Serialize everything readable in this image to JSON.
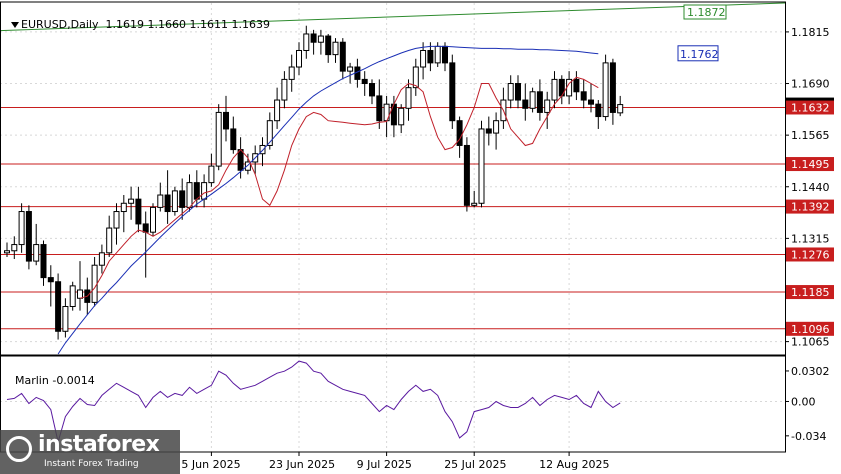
{
  "window": {
    "symbol": "EURUSD,Daily",
    "ohlc": [
      "1.1619",
      "1.1660",
      "1.1611",
      "1.1639"
    ]
  },
  "indicator": {
    "name": "Marlin",
    "value": "-0.0014",
    "ticks": [
      "0.0302",
      "0.00",
      "-0.034"
    ]
  },
  "watermark": {
    "brand": "instaforex",
    "tagline": "Instant Forex Trading"
  },
  "chart_data": {
    "type": "candlestick",
    "price_ticks": [
      "1.1815",
      "1.1690",
      "1.1565",
      "1.1440",
      "1.1315",
      "1.1065"
    ],
    "ylim": [
      1.1035,
      1.1885
    ],
    "x_labels": [
      {
        "label": "5 Jun 2025",
        "bar": 28
      },
      {
        "label": "23 Jun 2025",
        "bar": 40
      },
      {
        "label": "9 Jul 2025",
        "bar": 52
      },
      {
        "label": "25 Jul 2025",
        "bar": 64
      },
      {
        "label": "12 Aug 2025",
        "bar": 77
      }
    ],
    "level_lines": [
      {
        "value": 1.1632,
        "label": "1.1632"
      },
      {
        "value": 1.1495,
        "label": "1.1495"
      },
      {
        "value": 1.1392,
        "label": "1.1392"
      },
      {
        "value": 1.1276,
        "label": "1.1276"
      },
      {
        "value": 1.1185,
        "label": "1.1185"
      },
      {
        "value": 1.1096,
        "label": "1.1096"
      }
    ],
    "trendline": {
      "color": "#2e8b2e",
      "start": 1.1818,
      "end": 1.1885,
      "label": "1.1872"
    },
    "ma_blue": {
      "color": "#1a2fb5",
      "label": "1.1762",
      "label_value": 1.1762,
      "values": [
        null,
        null,
        null,
        null,
        null,
        null,
        null,
        1.1035,
        1.1062,
        1.1085,
        1.1108,
        1.113,
        1.1152,
        1.117,
        1.119,
        1.1208,
        1.1228,
        1.1248,
        1.1265,
        1.1282,
        1.13,
        1.1318,
        1.1335,
        1.1352,
        1.1368,
        1.1383,
        1.1398,
        1.141,
        1.1422,
        1.1435,
        1.1448,
        1.1462,
        1.1477,
        1.1492,
        1.151,
        1.1528,
        1.1548,
        1.1568,
        1.1588,
        1.1608,
        1.1628,
        1.1645,
        1.166,
        1.1672,
        1.1682,
        1.1692,
        1.1702,
        1.171,
        1.1718,
        1.1726,
        1.1735,
        1.1743,
        1.175,
        1.1757,
        1.1764,
        1.177,
        1.1775,
        1.1778,
        1.178,
        1.178,
        1.178,
        1.1779,
        1.1778,
        1.1777,
        1.1776,
        1.1775,
        1.1775,
        1.1775,
        1.1774,
        1.1774,
        1.1773,
        1.1773,
        1.1773,
        1.1772,
        1.1772,
        1.1771,
        1.177,
        1.1769,
        1.1768,
        1.1766,
        1.1764,
        1.1762
      ]
    },
    "ma_red": {
      "color": "#c0202a",
      "values": [
        null,
        null,
        null,
        null,
        null,
        null,
        null,
        null,
        null,
        null,
        1.117,
        1.1175,
        1.1195,
        1.1225,
        1.126,
        1.128,
        1.13,
        1.132,
        1.1335,
        1.133,
        1.132,
        1.133,
        1.1345,
        1.136,
        1.1375,
        1.139,
        1.141,
        1.1425,
        1.143,
        1.1445,
        1.148,
        1.151,
        1.153,
        1.151,
        1.147,
        1.141,
        1.1395,
        1.143,
        1.148,
        1.154,
        1.158,
        1.161,
        1.162,
        1.1615,
        1.16,
        1.1598,
        1.1596,
        1.1594,
        1.1592,
        1.159,
        1.1592,
        1.1596,
        1.1598,
        1.164,
        1.1675,
        1.169,
        1.1685,
        1.167,
        1.161,
        1.156,
        1.153,
        1.1535,
        1.1555,
        1.159,
        1.1632,
        1.169,
        1.169,
        1.1655,
        1.1625,
        1.158,
        1.156,
        1.154,
        1.1545,
        1.158,
        1.161,
        1.164,
        1.166,
        1.169,
        1.1705,
        1.17,
        1.169,
        1.168
      ]
    },
    "candles": [
      [
        1.128,
        1.1305,
        1.127,
        1.1285
      ],
      [
        1.1285,
        1.132,
        1.1265,
        1.13
      ],
      [
        1.13,
        1.14,
        1.128,
        1.138
      ],
      [
        1.138,
        1.1395,
        1.124,
        1.126
      ],
      [
        1.126,
        1.135,
        1.125,
        1.13
      ],
      [
        1.13,
        1.131,
        1.12,
        1.122
      ],
      [
        1.122,
        1.125,
        1.115,
        1.121
      ],
      [
        1.121,
        1.123,
        1.107,
        1.109
      ],
      [
        1.109,
        1.117,
        1.1075,
        1.115
      ],
      [
        1.115,
        1.121,
        1.114,
        1.12
      ],
      [
        1.117,
        1.126,
        1.114,
        1.119
      ],
      [
        1.119,
        1.122,
        1.113,
        1.116
      ],
      [
        1.116,
        1.127,
        1.115,
        1.125
      ],
      [
        1.125,
        1.13,
        1.123,
        1.128
      ],
      [
        1.128,
        1.137,
        1.127,
        1.134
      ],
      [
        1.134,
        1.14,
        1.13,
        1.138
      ],
      [
        1.138,
        1.142,
        1.133,
        1.14
      ],
      [
        1.14,
        1.144,
        1.136,
        1.141
      ],
      [
        1.141,
        1.144,
        1.133,
        1.135
      ],
      [
        1.135,
        1.138,
        1.122,
        1.133
      ],
      [
        1.133,
        1.14,
        1.132,
        1.139
      ],
      [
        1.139,
        1.145,
        1.138,
        1.142
      ],
      [
        1.142,
        1.148,
        1.135,
        1.138
      ],
      [
        1.138,
        1.144,
        1.137,
        1.143
      ],
      [
        1.143,
        1.146,
        1.136,
        1.139
      ],
      [
        1.139,
        1.147,
        1.138,
        1.145
      ],
      [
        1.145,
        1.148,
        1.139,
        1.141
      ],
      [
        1.141,
        1.147,
        1.139,
        1.145
      ],
      [
        1.145,
        1.152,
        1.144,
        1.149
      ],
      [
        1.149,
        1.164,
        1.148,
        1.162
      ],
      [
        1.162,
        1.166,
        1.155,
        1.158
      ],
      [
        1.158,
        1.161,
        1.152,
        1.153
      ],
      [
        1.153,
        1.156,
        1.146,
        1.148
      ],
      [
        1.148,
        1.152,
        1.147,
        1.15
      ],
      [
        1.15,
        1.154,
        1.147,
        1.152
      ],
      [
        1.152,
        1.156,
        1.149,
        1.154
      ],
      [
        1.154,
        1.162,
        1.153,
        1.16
      ],
      [
        1.16,
        1.168,
        1.158,
        1.165
      ],
      [
        1.165,
        1.172,
        1.163,
        1.17
      ],
      [
        1.17,
        1.176,
        1.167,
        1.173
      ],
      [
        1.173,
        1.179,
        1.171,
        1.177
      ],
      [
        1.177,
        1.183,
        1.175,
        1.181
      ],
      [
        1.181,
        1.182,
        1.176,
        1.179
      ],
      [
        1.179,
        1.182,
        1.176,
        1.1805
      ],
      [
        1.1805,
        1.181,
        1.174,
        1.176
      ],
      [
        1.176,
        1.18,
        1.174,
        1.179
      ],
      [
        1.179,
        1.18,
        1.17,
        1.172
      ],
      [
        1.172,
        1.174,
        1.169,
        1.173
      ],
      [
        1.173,
        1.175,
        1.168,
        1.17
      ],
      [
        1.17,
        1.172,
        1.166,
        1.169
      ],
      [
        1.169,
        1.17,
        1.164,
        1.166
      ],
      [
        1.166,
        1.17,
        1.158,
        1.16
      ],
      [
        1.16,
        1.166,
        1.156,
        1.164
      ],
      [
        1.164,
        1.166,
        1.156,
        1.159
      ],
      [
        1.159,
        1.164,
        1.157,
        1.163
      ],
      [
        1.163,
        1.17,
        1.16,
        1.168
      ],
      [
        1.168,
        1.175,
        1.166,
        1.173
      ],
      [
        1.173,
        1.179,
        1.17,
        1.177
      ],
      [
        1.177,
        1.179,
        1.172,
        1.174
      ],
      [
        1.174,
        1.179,
        1.173,
        1.178
      ],
      [
        1.178,
        1.179,
        1.172,
        1.174
      ],
      [
        1.174,
        1.176,
        1.158,
        1.16
      ],
      [
        1.16,
        1.161,
        1.151,
        1.154
      ],
      [
        1.154,
        1.156,
        1.138,
        1.1395
      ],
      [
        1.1395,
        1.143,
        1.139,
        1.14
      ],
      [
        1.14,
        1.16,
        1.139,
        1.158
      ],
      [
        1.158,
        1.161,
        1.154,
        1.157
      ],
      [
        1.157,
        1.162,
        1.153,
        1.16
      ],
      [
        1.16,
        1.168,
        1.158,
        1.165
      ],
      [
        1.165,
        1.171,
        1.163,
        1.169
      ],
      [
        1.169,
        1.171,
        1.163,
        1.165
      ],
      [
        1.165,
        1.169,
        1.16,
        1.163
      ],
      [
        1.163,
        1.168,
        1.162,
        1.167
      ],
      [
        1.167,
        1.17,
        1.16,
        1.162
      ],
      [
        1.162,
        1.167,
        1.158,
        1.165
      ],
      [
        1.165,
        1.172,
        1.163,
        1.17
      ],
      [
        1.17,
        1.171,
        1.164,
        1.166
      ],
      [
        1.166,
        1.172,
        1.164,
        1.17
      ],
      [
        1.17,
        1.172,
        1.165,
        1.167
      ],
      [
        1.167,
        1.17,
        1.163,
        1.165
      ],
      [
        1.165,
        1.169,
        1.162,
        1.164
      ],
      [
        1.164,
        1.165,
        1.158,
        1.161
      ],
      [
        1.161,
        1.176,
        1.16,
        1.174
      ],
      [
        1.174,
        1.175,
        1.159,
        1.162
      ],
      [
        1.1619,
        1.166,
        1.1611,
        1.1639
      ]
    ],
    "oscillator": {
      "ylim": [
        -0.05,
        0.045
      ],
      "values": [
        0.002,
        0.003,
        0.008,
        -0.002,
        0.004,
        0.001,
        -0.008,
        -0.04,
        -0.015,
        -0.005,
        0.003,
        -0.003,
        -0.004,
        0.006,
        0.012,
        0.018,
        0.014,
        0.01,
        0.006,
        -0.006,
        0.004,
        0.01,
        0.004,
        0.008,
        0.006,
        0.014,
        0.008,
        0.012,
        0.016,
        0.03,
        0.026,
        0.018,
        0.012,
        0.014,
        0.016,
        0.02,
        0.024,
        0.028,
        0.03,
        0.034,
        0.04,
        0.038,
        0.03,
        0.028,
        0.02,
        0.016,
        0.012,
        0.01,
        0.008,
        0.006,
        -0.002,
        -0.01,
        -0.004,
        -0.008,
        0.002,
        0.01,
        0.016,
        0.01,
        0.012,
        0.006,
        -0.01,
        -0.02,
        -0.036,
        -0.03,
        -0.01,
        -0.008,
        -0.006,
        0.0,
        -0.004,
        -0.006,
        -0.006,
        -0.002,
        0.004,
        -0.004,
        0.002,
        0.006,
        0.004,
        0.002,
        0.006,
        -0.002,
        -0.006,
        0.01,
        0.0,
        -0.006,
        -0.0014
      ]
    }
  }
}
